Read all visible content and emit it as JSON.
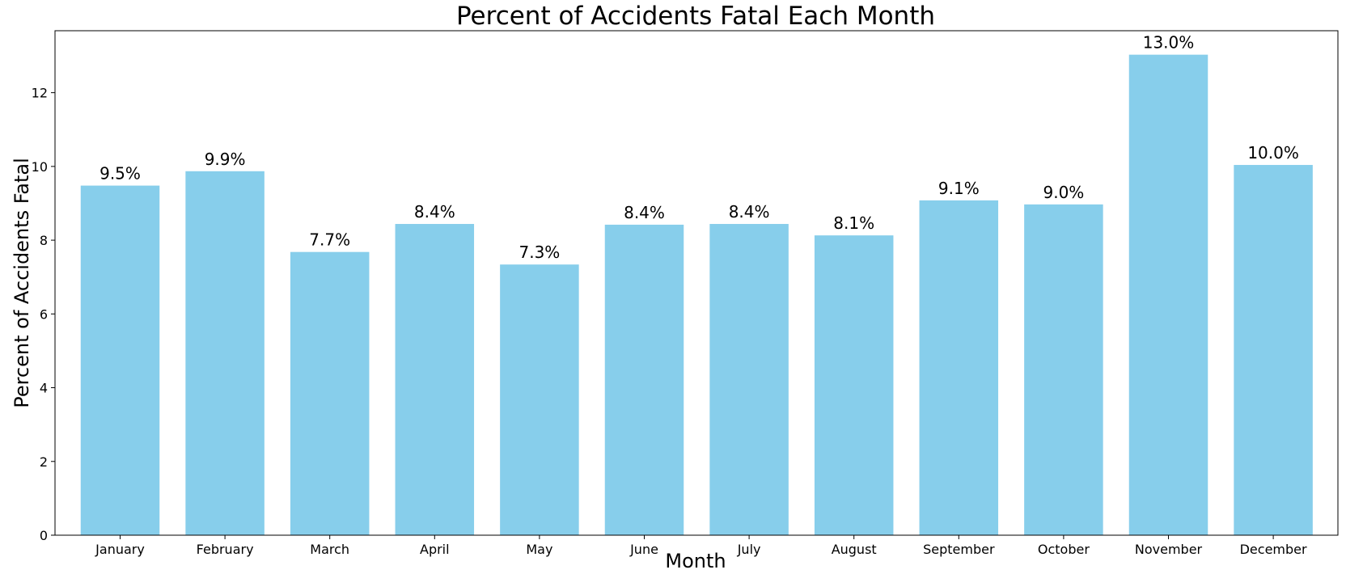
{
  "chart_data": {
    "type": "bar",
    "title": "Percent of Accidents Fatal Each Month",
    "xlabel": "Month",
    "ylabel": "Percent of Accidents Fatal",
    "categories": [
      "January",
      "February",
      "March",
      "April",
      "May",
      "June",
      "July",
      "August",
      "September",
      "October",
      "November",
      "December"
    ],
    "values": [
      9.48,
      9.87,
      7.68,
      8.44,
      7.34,
      8.42,
      8.44,
      8.13,
      9.08,
      8.97,
      13.03,
      10.04
    ],
    "value_labels": [
      "9.5%",
      "9.9%",
      "7.7%",
      "8.4%",
      "7.3%",
      "8.4%",
      "8.4%",
      "8.1%",
      "9.1%",
      "9.0%",
      "13.0%",
      "10.0%"
    ],
    "yticks": [
      0,
      2,
      4,
      6,
      8,
      10,
      12
    ],
    "ylim": [
      0,
      13.68
    ],
    "grid": false,
    "legend": "none",
    "bar_color": "#87ceeb"
  }
}
